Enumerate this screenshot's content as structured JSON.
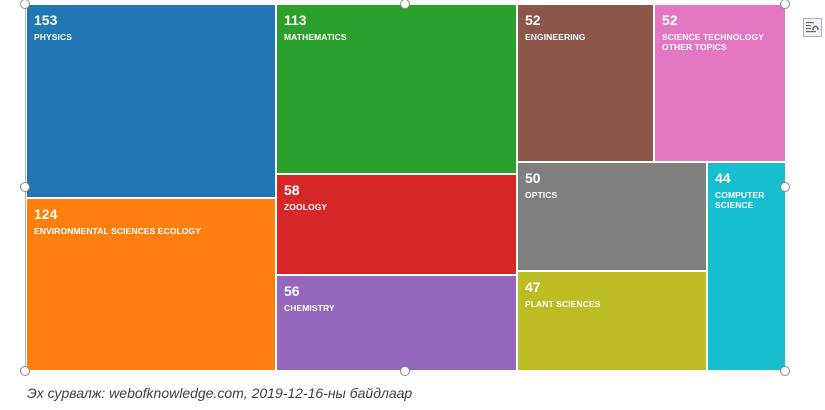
{
  "chart_data": {
    "type": "treemap",
    "tiles": [
      {
        "label": "PHYSICS",
        "value": 153,
        "color": "#2077b4"
      },
      {
        "label": "ENVIRONMENTAL SCIENCES ECOLOGY",
        "value": 124,
        "color": "#ff7f0e"
      },
      {
        "label": "MATHEMATICS",
        "value": 113,
        "color": "#2ca02c"
      },
      {
        "label": "ZOOLOGY",
        "value": 58,
        "color": "#d62728"
      },
      {
        "label": "CHEMISTRY",
        "value": 56,
        "color": "#9467bd"
      },
      {
        "label": "ENGINEERING",
        "value": 52,
        "color": "#8c564b"
      },
      {
        "label": "SCIENCE TECHNOLOGY OTHER TOPICS",
        "value": 52,
        "color": "#e377c2"
      },
      {
        "label": "OPTICS",
        "value": 50,
        "color": "#7f7f7f"
      },
      {
        "label": "PLANT SCIENCES",
        "value": 47,
        "color": "#bcbd22"
      },
      {
        "label": "COMPUTER SCIENCE",
        "value": 44,
        "color": "#17becf"
      }
    ]
  },
  "caption": "Эх сурвалж: webofknowledge.com, 2019-12-16-ны байдлаар",
  "toolbar": {
    "layout_options_icon": "layout-options-icon"
  }
}
